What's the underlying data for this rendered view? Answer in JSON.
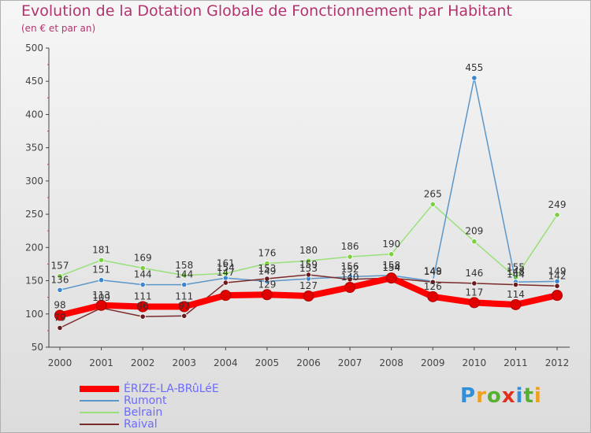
{
  "title": "Evolution de la Dotation Globale de Fonctionnement par Habitant",
  "subtitle": "(en € et par an)",
  "logo": {
    "text": "Proxiti",
    "letters": [
      "P",
      "r",
      "o",
      "x",
      "i",
      "t",
      "i"
    ],
    "letter_colors": [
      "#2f8fd8",
      "#f0a020",
      "#58b030",
      "#e03020",
      "#2f8fd8",
      "#58b030",
      "#f0a020"
    ]
  },
  "chart_data": {
    "type": "line",
    "title": "Evolution de la Dotation Globale de Fonctionnement par Habitant",
    "subtitle": "(en € et par an)",
    "xlabel": "",
    "ylabel": "",
    "ylim": [
      50,
      500
    ],
    "yticks": [
      50,
      100,
      150,
      200,
      250,
      300,
      350,
      400,
      450,
      500
    ],
    "grid": false,
    "categories": [
      "2000",
      "2001",
      "2002",
      "2003",
      "2004",
      "2005",
      "2006",
      "2007",
      "2008",
      "2009",
      "2010",
      "2011",
      "2012"
    ],
    "series": [
      {
        "name": "ÉRIZE-LA-BRûLéE",
        "color": "#ff0000",
        "marker_color": "#e00000",
        "values": [
          98,
          113,
          111,
          111,
          128,
          129,
          127,
          140,
          154,
          126,
          117,
          114,
          128
        ],
        "labels": [
          "98",
          "113",
          "111",
          "111",
          "",
          "129",
          "127",
          "140",
          "154",
          "126",
          "117",
          "114",
          ""
        ]
      },
      {
        "name": "Rumont",
        "color": "#5b96c8",
        "marker_color": "#3a86d0",
        "values": [
          136,
          151,
          144,
          144,
          154,
          149,
          153,
          156,
          158,
          149,
          455,
          148,
          149
        ],
        "labels": [
          "136",
          "151",
          "144",
          "144",
          "154",
          "149",
          "153",
          "156",
          "158",
          "149",
          "455",
          "148",
          "149"
        ]
      },
      {
        "name": "Belrain",
        "color": "#99e07a",
        "marker_color": "#7cd040",
        "values": [
          157,
          181,
          169,
          158,
          161,
          176,
          180,
          186,
          190,
          265,
          209,
          155,
          249
        ],
        "labels": [
          "157",
          "181",
          "169",
          "158",
          "161",
          "176",
          "180",
          "186",
          "190",
          "265",
          "209",
          "155",
          "249"
        ]
      },
      {
        "name": "Raival",
        "color": "#7a2a2a",
        "marker_color": "#6a1a1a",
        "values": [
          79,
          109,
          96,
          97,
          147,
          153,
          159,
          152,
          154,
          148,
          146,
          144,
          142
        ],
        "labels": [
          "79",
          "109",
          "96",
          "97",
          "147",
          "153",
          "159",
          "152",
          "154",
          "148",
          "146",
          "144",
          "142"
        ]
      }
    ]
  }
}
